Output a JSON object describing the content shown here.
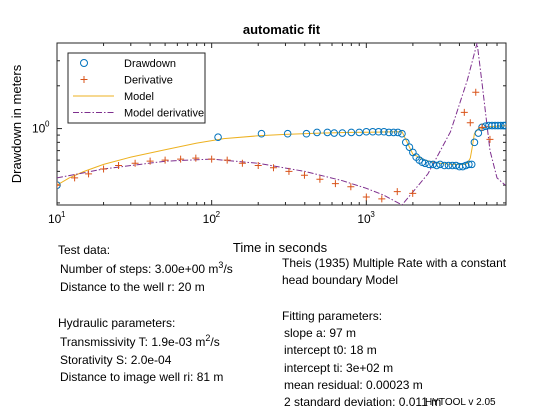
{
  "chart_data": {
    "type": "scatter",
    "title": "automatic fit",
    "xlabel": "Time in seconds",
    "ylabel": "Drawdown in meters",
    "xscale": "log",
    "yscale": "log",
    "xlim": [
      10,
      8000
    ],
    "ylim": [
      0.29,
      4.0
    ],
    "x_ticks": [
      10,
      100,
      1000
    ],
    "x_tick_labels": [
      "10",
      "10",
      "10"
    ],
    "x_tick_exponents": [
      "1",
      "2",
      "3"
    ],
    "y_ticks": [
      1.0
    ],
    "y_tick_labels": [
      "10"
    ],
    "y_tick_exponents": [
      "0"
    ],
    "legend_position": "top-left",
    "colors": {
      "drawdown": "#0072BD",
      "derivative": "#D95319",
      "model": "#EDB120",
      "model_derivative": "#7E2F8E"
    },
    "series": [
      {
        "name": "Drawdown",
        "marker": "circle",
        "x": [
          10,
          110,
          210,
          310,
          410,
          480,
          560,
          620,
          700,
          800,
          900,
          1000,
          1100,
          1200,
          1300,
          1400,
          1500,
          1600,
          1700,
          1800,
          1900,
          2000,
          2100,
          2200,
          2300,
          2400,
          2550,
          2700,
          2850,
          3000,
          3200,
          3400,
          3600,
          3800,
          4000,
          4200,
          4400,
          4600,
          4800,
          5000,
          5300,
          5600,
          5900,
          6200,
          6500,
          6800,
          7100,
          7400,
          7700,
          7900
        ],
        "values": [
          0.4,
          0.87,
          0.92,
          0.92,
          0.92,
          0.94,
          0.94,
          0.93,
          0.93,
          0.94,
          0.94,
          0.95,
          0.95,
          0.95,
          0.95,
          0.94,
          0.94,
          0.94,
          0.92,
          0.8,
          0.74,
          0.68,
          0.63,
          0.6,
          0.58,
          0.57,
          0.56,
          0.56,
          0.55,
          0.56,
          0.55,
          0.55,
          0.55,
          0.55,
          0.54,
          0.54,
          0.55,
          0.56,
          0.56,
          0.8,
          0.93,
          1.02,
          1.04,
          1.05,
          1.05,
          1.05,
          1.05,
          1.05,
          1.05,
          1.05
        ]
      },
      {
        "name": "Derivative",
        "marker": "plus",
        "x": [
          10,
          13,
          16,
          20,
          25,
          32,
          40,
          50,
          63,
          79,
          100,
          126,
          158,
          200,
          251,
          316,
          398,
          501,
          631,
          794,
          1000,
          1259,
          1585,
          1995,
          4300,
          4700,
          5100,
          5600,
          6300
        ],
        "values": [
          0.4,
          0.45,
          0.48,
          0.52,
          0.55,
          0.57,
          0.59,
          0.6,
          0.61,
          0.62,
          0.61,
          0.6,
          0.57,
          0.55,
          0.53,
          0.5,
          0.47,
          0.44,
          0.41,
          0.39,
          0.33,
          0.32,
          0.36,
          0.35,
          1.3,
          1.1,
          1.8,
          1.02,
          0.84
        ]
      },
      {
        "name": "Model",
        "line": "solid",
        "x": [
          10,
          12,
          15,
          20,
          30,
          50,
          80,
          120,
          200,
          300,
          500,
          800,
          1200,
          1700,
          2000,
          2400,
          2800,
          3200,
          3600,
          4000,
          4300,
          4500,
          4700,
          4850,
          5000,
          5300,
          6000,
          7000,
          7900
        ],
        "values": [
          0.4,
          0.45,
          0.5,
          0.56,
          0.63,
          0.71,
          0.79,
          0.85,
          0.89,
          0.91,
          0.93,
          0.94,
          0.945,
          0.95,
          0.66,
          0.6,
          0.575,
          0.565,
          0.56,
          0.56,
          0.56,
          0.57,
          0.62,
          0.75,
          0.92,
          1.0,
          1.03,
          1.04,
          1.05
        ]
      },
      {
        "name": "Model derivative",
        "line": "dashdot",
        "x": [
          10,
          20,
          50,
          100,
          200,
          400,
          700,
          1000,
          1300,
          1700,
          2500,
          3500,
          4500,
          5200,
          5600,
          6300,
          7000,
          7900
        ],
        "values": [
          0.45,
          0.52,
          0.59,
          0.61,
          0.57,
          0.5,
          0.43,
          0.38,
          0.34,
          0.29,
          0.48,
          0.95,
          2.2,
          4.0,
          2.1,
          0.7,
          0.45,
          0.4
        ]
      }
    ]
  },
  "info": {
    "test_data_heading": "Test data:",
    "steps_label": "Number of steps: 3.00e+00 m",
    "steps_unit_sup": "3",
    "steps_unit_tail": "/s",
    "distance_well": "Distance to the well r: 20 m",
    "hydraulic_heading": "Hydraulic parameters:",
    "transmissivity_label": "Transmissivity T: 1.9e-03 m",
    "transmissivity_unit_sup": "2",
    "transmissivity_unit_tail": "/s",
    "storativity": "Storativity S: 2.0e-04",
    "distance_image": "Distance to image well ri: 81 m",
    "model_line1": "Theis (1935) Multiple Rate with a constant",
    "model_line2": "head boundary Model",
    "fitting_heading": "Fitting parameters:",
    "slope": "slope a: 97 m",
    "intercept_t0": "intercept t0: 18 m",
    "intercept_ti": "intercept ti: 3e+02 m",
    "mean_residual": "mean residual: 0.00023 m",
    "std_dev": "2 standard deviation: 0.011 m",
    "version": "HYTOOL v 2.05"
  }
}
